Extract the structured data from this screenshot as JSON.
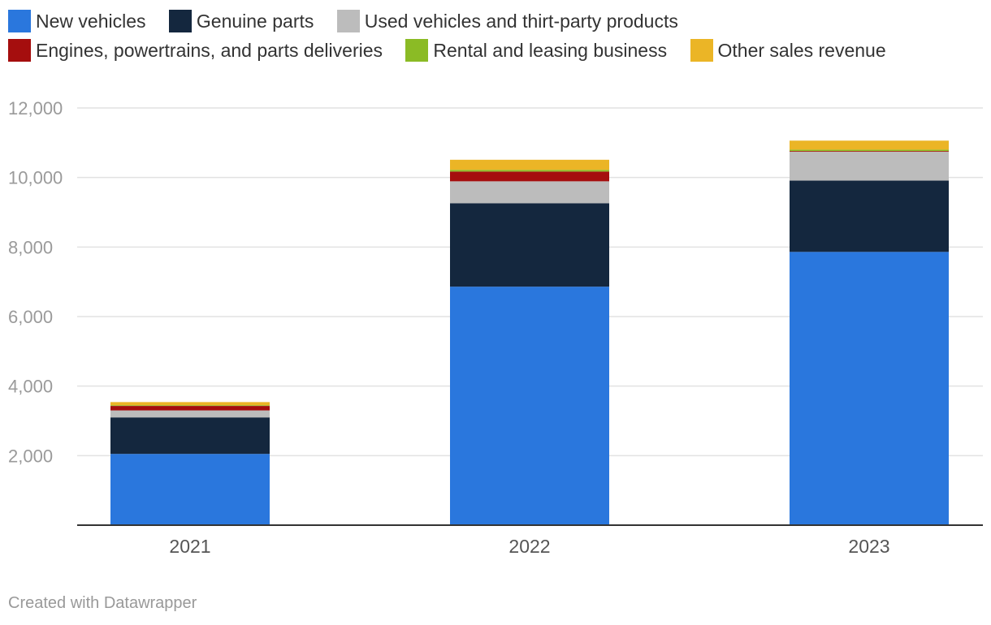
{
  "chart_data": {
    "type": "bar",
    "stacked": true,
    "title": "",
    "xlabel": "",
    "ylabel": "",
    "ylim": [
      0,
      12000
    ],
    "yticks": [
      2000,
      4000,
      6000,
      8000,
      10000,
      12000
    ],
    "ytick_labels": [
      "2,000",
      "4,000",
      "6,000",
      "8,000",
      "10,000",
      "12,000"
    ],
    "grid": true,
    "legend_position": "top",
    "categories": [
      "2021",
      "2022",
      "2023"
    ],
    "series": [
      {
        "name": "New vehicles",
        "color": "#2a77dd",
        "values": [
          2050,
          6860,
          7860
        ]
      },
      {
        "name": "Genuine parts",
        "color": "#14273e",
        "values": [
          1050,
          2400,
          2050
        ]
      },
      {
        "name": "Used vehicles and thirt-party products",
        "color": "#bcbcbc",
        "values": [
          200,
          630,
          830
        ]
      },
      {
        "name": "Engines, powertrains, and parts deliveries",
        "color": "#a50e0e",
        "values": [
          130,
          280,
          20
        ]
      },
      {
        "name": "Rental and leasing business",
        "color": "#8bbb25",
        "values": [
          20,
          50,
          40
        ]
      },
      {
        "name": "Other sales revenue",
        "color": "#ebb526",
        "values": [
          90,
          290,
          260
        ]
      }
    ]
  },
  "footer": {
    "credit": "Created with Datawrapper"
  }
}
